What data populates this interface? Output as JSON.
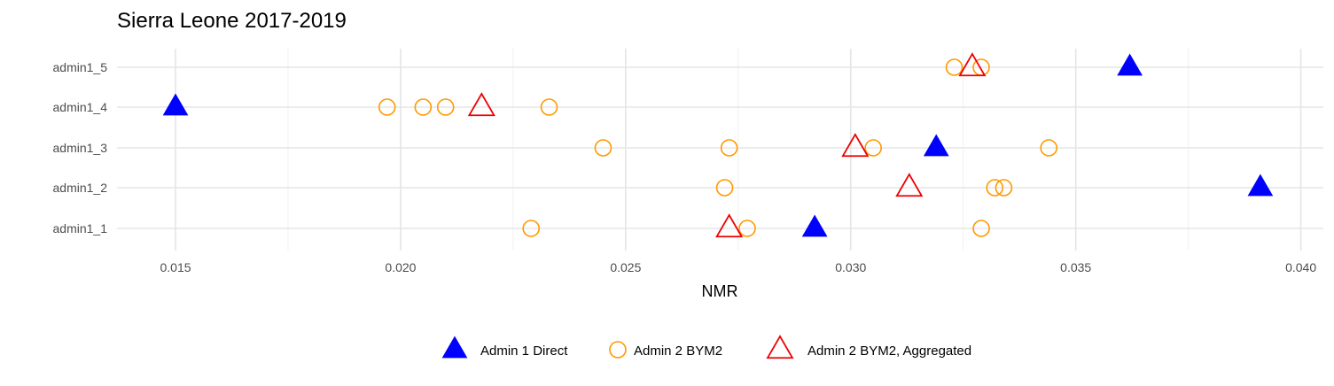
{
  "chart_data": {
    "type": "scatter",
    "title": "Sierra Leone 2017-2019",
    "xlabel": "NMR",
    "ylabel": "",
    "xlim": [
      0.0137,
      0.0405
    ],
    "xticks": [
      0.015,
      0.02,
      0.025,
      0.03,
      0.035,
      0.04
    ],
    "xtick_labels": [
      "0.015",
      "0.020",
      "0.025",
      "0.030",
      "0.035",
      "0.040"
    ],
    "categories": [
      "admin1_1",
      "admin1_2",
      "admin1_3",
      "admin1_4",
      "admin1_5"
    ],
    "grid": true,
    "legend_position": "bottom",
    "series": [
      {
        "name": "Admin 1 Direct",
        "marker": "filled-triangle",
        "color": "#0000ff",
        "points": [
          {
            "y": "admin1_1",
            "x": 0.0292
          },
          {
            "y": "admin1_2",
            "x": 0.0391
          },
          {
            "y": "admin1_3",
            "x": 0.0319
          },
          {
            "y": "admin1_4",
            "x": 0.015
          },
          {
            "y": "admin1_5",
            "x": 0.0362
          }
        ]
      },
      {
        "name": "Admin 2 BYM2",
        "marker": "open-circle",
        "color": "#ff9900",
        "points": [
          {
            "y": "admin1_1",
            "x": 0.0229
          },
          {
            "y": "admin1_1",
            "x": 0.0277
          },
          {
            "y": "admin1_1",
            "x": 0.0329
          },
          {
            "y": "admin1_2",
            "x": 0.0272
          },
          {
            "y": "admin1_2",
            "x": 0.0332
          },
          {
            "y": "admin1_2",
            "x": 0.0334
          },
          {
            "y": "admin1_3",
            "x": 0.0245
          },
          {
            "y": "admin1_3",
            "x": 0.0273
          },
          {
            "y": "admin1_3",
            "x": 0.0305
          },
          {
            "y": "admin1_3",
            "x": 0.0344
          },
          {
            "y": "admin1_4",
            "x": 0.0197
          },
          {
            "y": "admin1_4",
            "x": 0.0205
          },
          {
            "y": "admin1_4",
            "x": 0.021
          },
          {
            "y": "admin1_4",
            "x": 0.0233
          },
          {
            "y": "admin1_5",
            "x": 0.0323
          },
          {
            "y": "admin1_5",
            "x": 0.0329
          }
        ]
      },
      {
        "name": "Admin 2 BYM2, Aggregated",
        "marker": "open-triangle",
        "color": "#ee0000",
        "points": [
          {
            "y": "admin1_1",
            "x": 0.0273
          },
          {
            "y": "admin1_2",
            "x": 0.0313
          },
          {
            "y": "admin1_3",
            "x": 0.0301
          },
          {
            "y": "admin1_4",
            "x": 0.0218
          },
          {
            "y": "admin1_5",
            "x": 0.0327
          }
        ]
      }
    ]
  }
}
